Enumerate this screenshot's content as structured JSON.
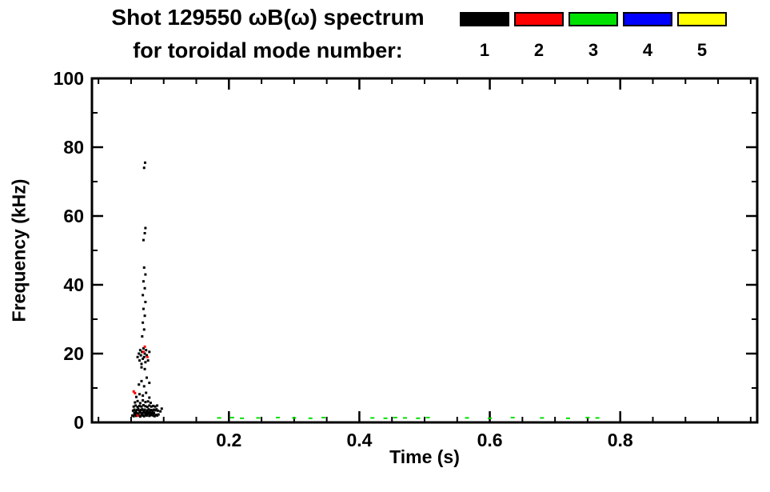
{
  "chart_data": {
    "type": "scatter",
    "title": "Shot 129550 ωB(ω) spectrum",
    "subtitle": "for toroidal mode number:",
    "xlabel": "Time (s)",
    "ylabel": "Frequency (kHz)",
    "xlim": [
      -0.01,
      1.01
    ],
    "ylim": [
      0,
      100
    ],
    "x_major_ticks": [
      0.2,
      0.4,
      0.6,
      0.8
    ],
    "x_tick_labels": [
      "0.2",
      "0.4",
      "0.6",
      "0.8"
    ],
    "x_minor_step": 0.05,
    "y_major_ticks": [
      0,
      20,
      40,
      60,
      80,
      100
    ],
    "y_tick_labels": [
      "0",
      "20",
      "40",
      "60",
      "80",
      "100"
    ],
    "y_minor_step": 10,
    "grid": false,
    "legend_position": "top-right",
    "legend": [
      {
        "mode": "1",
        "color": "#000000"
      },
      {
        "mode": "2",
        "color": "#ff0000"
      },
      {
        "mode": "3",
        "color": "#00e100"
      },
      {
        "mode": "4",
        "color": "#0000ff"
      },
      {
        "mode": "5",
        "color": "#ffff00"
      }
    ],
    "series": [
      {
        "name": "n=1",
        "mode": "1",
        "color": "#000000",
        "marker": {
          "w": 3,
          "h": 3
        },
        "points": [
          [
            0.052,
            2.0
          ],
          [
            0.054,
            1.8
          ],
          [
            0.056,
            2.2
          ],
          [
            0.058,
            1.9
          ],
          [
            0.06,
            2.4
          ],
          [
            0.062,
            2.0
          ],
          [
            0.064,
            1.7
          ],
          [
            0.066,
            2.3
          ],
          [
            0.068,
            2.0
          ],
          [
            0.07,
            1.8
          ],
          [
            0.072,
            2.2
          ],
          [
            0.074,
            2.0
          ],
          [
            0.076,
            2.4
          ],
          [
            0.078,
            1.9
          ],
          [
            0.08,
            2.1
          ],
          [
            0.082,
            2.3
          ],
          [
            0.084,
            2.0
          ],
          [
            0.086,
            1.8
          ],
          [
            0.088,
            2.2
          ],
          [
            0.09,
            2.0
          ],
          [
            0.092,
            2.3
          ],
          [
            0.055,
            2.7
          ],
          [
            0.058,
            2.8
          ],
          [
            0.061,
            2.6
          ],
          [
            0.064,
            2.9
          ],
          [
            0.067,
            2.7
          ],
          [
            0.07,
            2.8
          ],
          [
            0.073,
            2.6
          ],
          [
            0.076,
            2.9
          ],
          [
            0.079,
            2.7
          ],
          [
            0.082,
            2.8
          ],
          [
            0.085,
            2.7
          ],
          [
            0.053,
            3.4
          ],
          [
            0.055,
            3.7
          ],
          [
            0.057,
            3.2
          ],
          [
            0.059,
            3.6
          ],
          [
            0.061,
            3.9
          ],
          [
            0.063,
            3.3
          ],
          [
            0.065,
            3.6
          ],
          [
            0.067,
            3.8
          ],
          [
            0.069,
            3.4
          ],
          [
            0.071,
            3.7
          ],
          [
            0.073,
            3.2
          ],
          [
            0.075,
            3.5
          ],
          [
            0.077,
            3.8
          ],
          [
            0.079,
            3.4
          ],
          [
            0.081,
            3.6
          ],
          [
            0.083,
            3.3
          ],
          [
            0.085,
            3.7
          ],
          [
            0.087,
            3.5
          ],
          [
            0.089,
            3.8
          ],
          [
            0.091,
            3.4
          ],
          [
            0.054,
            4.6
          ],
          [
            0.057,
            4.9
          ],
          [
            0.06,
            4.5
          ],
          [
            0.063,
            4.8
          ],
          [
            0.066,
            4.6
          ],
          [
            0.069,
            5.0
          ],
          [
            0.072,
            4.7
          ],
          [
            0.075,
            4.5
          ],
          [
            0.078,
            4.9
          ],
          [
            0.081,
            4.6
          ],
          [
            0.084,
            4.8
          ],
          [
            0.087,
            4.6
          ],
          [
            0.09,
            4.9
          ],
          [
            0.056,
            5.8
          ],
          [
            0.06,
            6.2
          ],
          [
            0.064,
            5.6
          ],
          [
            0.068,
            6.4
          ],
          [
            0.072,
            5.9
          ],
          [
            0.076,
            6.1
          ],
          [
            0.08,
            5.7
          ],
          [
            0.058,
            7.4
          ],
          [
            0.063,
            8.2
          ],
          [
            0.068,
            7.8
          ],
          [
            0.073,
            8.6
          ],
          [
            0.078,
            7.2
          ],
          [
            0.095,
            3.2
          ],
          [
            0.097,
            4.0
          ],
          [
            0.06,
            19.0
          ],
          [
            0.062,
            20.0
          ],
          [
            0.063,
            18.0
          ],
          [
            0.064,
            21.0
          ],
          [
            0.065,
            19.5
          ],
          [
            0.066,
            17.0
          ],
          [
            0.067,
            20.5
          ],
          [
            0.068,
            18.5
          ],
          [
            0.069,
            21.5
          ],
          [
            0.07,
            19.0
          ],
          [
            0.071,
            20.0
          ],
          [
            0.072,
            17.5
          ],
          [
            0.073,
            21.0
          ],
          [
            0.074,
            19.5
          ],
          [
            0.076,
            18.0
          ],
          [
            0.078,
            20.5
          ],
          [
            0.066,
            16.0
          ],
          [
            0.071,
            15.5
          ],
          [
            0.062,
            11.0
          ],
          [
            0.066,
            12.0
          ],
          [
            0.07,
            10.5
          ],
          [
            0.074,
            13.0
          ],
          [
            0.078,
            11.5
          ],
          [
            0.067,
            25.0
          ],
          [
            0.07,
            27.0
          ],
          [
            0.068,
            29.0
          ],
          [
            0.071,
            31.0
          ],
          [
            0.069,
            33.0
          ],
          [
            0.072,
            35.0
          ],
          [
            0.068,
            37.0
          ],
          [
            0.071,
            39.0
          ],
          [
            0.069,
            41.0
          ],
          [
            0.072,
            43.0
          ],
          [
            0.07,
            45.0
          ],
          [
            0.069,
            53.0
          ],
          [
            0.071,
            55.0
          ],
          [
            0.072,
            56.5
          ],
          [
            0.07,
            74.0
          ],
          [
            0.0715,
            75.5
          ]
        ]
      },
      {
        "name": "n=2",
        "mode": "2",
        "color": "#ff0000",
        "marker": {
          "w": 3,
          "h": 3
        },
        "points": [
          [
            0.054,
            9.0
          ],
          [
            0.056,
            8.5
          ],
          [
            0.069,
            20.5
          ],
          [
            0.071,
            22.0
          ],
          [
            0.06,
            2.0
          ],
          [
            0.075,
            19.0
          ]
        ]
      },
      {
        "name": "n=3",
        "mode": "3",
        "color": "#00e100",
        "marker": {
          "w": 5,
          "h": 2
        },
        "points": [
          [
            0.185,
            1.3
          ],
          [
            0.205,
            1.4
          ],
          [
            0.22,
            1.2
          ],
          [
            0.245,
            1.3
          ],
          [
            0.275,
            1.4
          ],
          [
            0.3,
            1.3
          ],
          [
            0.325,
            1.2
          ],
          [
            0.345,
            1.4
          ],
          [
            0.42,
            1.3
          ],
          [
            0.44,
            1.2
          ],
          [
            0.455,
            1.4
          ],
          [
            0.47,
            1.3
          ],
          [
            0.49,
            1.2
          ],
          [
            0.505,
            1.4
          ],
          [
            0.565,
            1.3
          ],
          [
            0.6,
            1.2
          ],
          [
            0.635,
            1.4
          ],
          [
            0.68,
            1.3
          ],
          [
            0.72,
            1.2
          ],
          [
            0.75,
            1.4
          ],
          [
            0.765,
            1.3
          ]
        ]
      },
      {
        "name": "n=4",
        "mode": "4",
        "color": "#0000ff",
        "marker": {
          "w": 3,
          "h": 3
        },
        "points": []
      },
      {
        "name": "n=5",
        "mode": "5",
        "color": "#ffff00",
        "marker": {
          "w": 3,
          "h": 3
        },
        "points": []
      }
    ]
  }
}
